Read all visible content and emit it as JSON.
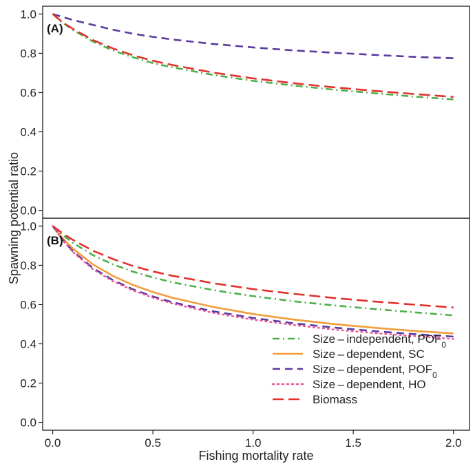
{
  "chart_data": {
    "type": "line",
    "xlabel": "Fishing mortality rate",
    "ylabel": "Spawning potential ratio",
    "xlim": [
      -0.05,
      2.08
    ],
    "ylim": [
      -0.04,
      1.04
    ],
    "x_ticks": [
      "0.0",
      "0.5",
      "1.0",
      "1.5",
      "2.0"
    ],
    "y_ticks": [
      "0.0",
      "0.2",
      "0.4",
      "0.6",
      "0.8",
      "1.0"
    ],
    "x_tick_values": [
      0,
      0.5,
      1.0,
      1.5,
      2.0
    ],
    "y_tick_values": [
      0,
      0.2,
      0.4,
      0.6,
      0.8,
      1.0
    ],
    "legend_position": "bottom-right",
    "legend": [
      {
        "id": "si_pof",
        "label": "Size – independent, POF",
        "subscript": "0",
        "color": "#4daf4a",
        "dash": "dashdot"
      },
      {
        "id": "sd_sc",
        "label": "Size – dependent, SC",
        "subscript": "",
        "color": "#f39c3a",
        "dash": "solid"
      },
      {
        "id": "sd_pof",
        "label": "Size – dependent, POF",
        "subscript": "0",
        "color": "#5a3a9e",
        "dash": "dashed"
      },
      {
        "id": "sd_ho",
        "label": "Size – dependent, HO",
        "subscript": "",
        "color": "#e8559a",
        "dash": "dotted"
      },
      {
        "id": "biomass",
        "label": "Biomass",
        "subscript": "",
        "color": "#e3312d",
        "dash": "longdash"
      }
    ],
    "panels": [
      {
        "label": "(A)",
        "x": [
          0,
          0.05,
          0.1,
          0.2,
          0.3,
          0.4,
          0.5,
          0.6,
          0.8,
          1.0,
          1.2,
          1.4,
          1.6,
          1.8,
          2.0
        ],
        "series": [
          {
            "id": "si_pof",
            "values": [
              1.0,
              0.955,
              0.92,
              0.86,
              0.815,
              0.78,
              0.75,
              0.728,
              0.69,
              0.66,
              0.636,
              0.615,
              0.597,
              0.58,
              0.565
            ]
          },
          {
            "id": "sd_pof",
            "values": [
              1.0,
              0.985,
              0.97,
              0.945,
              0.92,
              0.9,
              0.884,
              0.87,
              0.848,
              0.83,
              0.815,
              0.803,
              0.792,
              0.782,
              0.775
            ]
          },
          {
            "id": "biomass",
            "values": [
              1.0,
              0.958,
              0.925,
              0.868,
              0.825,
              0.79,
              0.762,
              0.74,
              0.702,
              0.672,
              0.648,
              0.627,
              0.609,
              0.593,
              0.578
            ]
          }
        ]
      },
      {
        "label": "(B)",
        "x": [
          0,
          0.05,
          0.1,
          0.2,
          0.3,
          0.4,
          0.5,
          0.6,
          0.8,
          1.0,
          1.2,
          1.4,
          1.6,
          1.8,
          2.0
        ],
        "series": [
          {
            "id": "si_pof",
            "values": [
              1.0,
              0.955,
              0.915,
              0.852,
              0.805,
              0.768,
              0.738,
              0.713,
              0.674,
              0.643,
              0.617,
              0.596,
              0.578,
              0.561,
              0.545
            ]
          },
          {
            "id": "sd_sc",
            "values": [
              1.0,
              0.938,
              0.885,
              0.805,
              0.746,
              0.7,
              0.664,
              0.634,
              0.588,
              0.552,
              0.524,
              0.501,
              0.482,
              0.466,
              0.453
            ]
          },
          {
            "id": "sd_pof",
            "values": [
              1.0,
              0.93,
              0.872,
              0.787,
              0.725,
              0.678,
              0.641,
              0.611,
              0.566,
              0.532,
              0.505,
              0.483,
              0.465,
              0.45,
              0.437
            ]
          },
          {
            "id": "sd_ho",
            "values": [
              1.0,
              0.927,
              0.868,
              0.781,
              0.719,
              0.672,
              0.635,
              0.605,
              0.558,
              0.523,
              0.496,
              0.473,
              0.455,
              0.44,
              0.425
            ]
          },
          {
            "id": "biomass",
            "values": [
              1.0,
              0.962,
              0.93,
              0.875,
              0.832,
              0.797,
              0.769,
              0.746,
              0.709,
              0.679,
              0.655,
              0.634,
              0.616,
              0.6,
              0.585
            ]
          }
        ]
      }
    ]
  }
}
